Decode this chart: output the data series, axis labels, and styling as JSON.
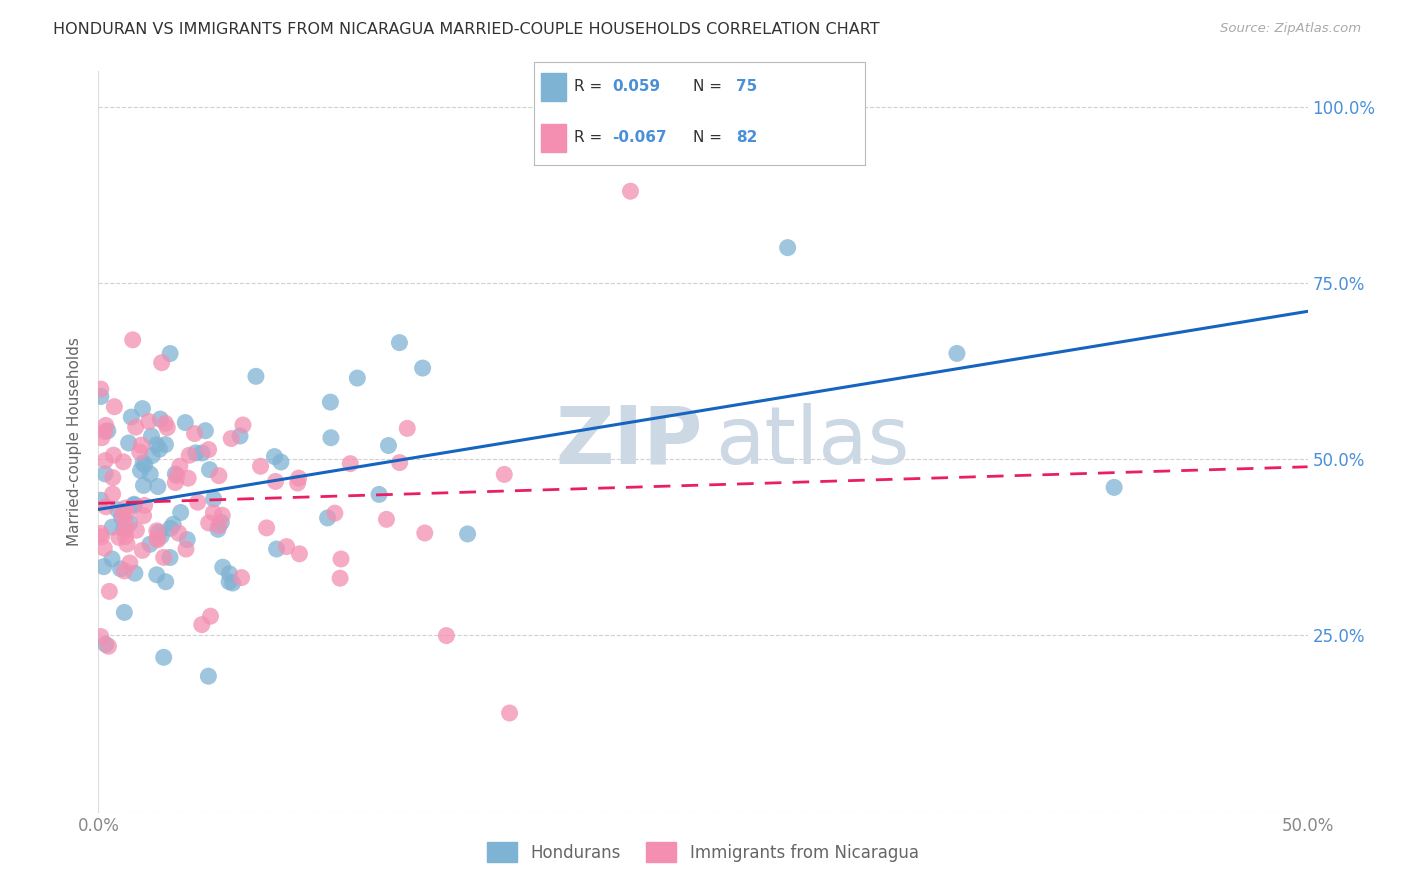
{
  "title": "HONDURAN VS IMMIGRANTS FROM NICARAGUA MARRIED-COUPLE HOUSEHOLDS CORRELATION CHART",
  "source": "Source: ZipAtlas.com",
  "ylabel": "Married-couple Households",
  "blue_color": "#7fb3d3",
  "pink_color": "#f48fb1",
  "blue_line_color": "#1565c0",
  "pink_line_color": "#e91e63",
  "watermark_color": "#ccd8e4",
  "background_color": "#ffffff",
  "grid_color": "#cccccc",
  "title_color": "#333333",
  "source_color": "#aaaaaa",
  "axis_label_color": "#4a90d9",
  "tick_label_color": "#888888",
  "R_blue": 0.059,
  "N_blue": 75,
  "R_pink": -0.067,
  "N_pink": 82
}
